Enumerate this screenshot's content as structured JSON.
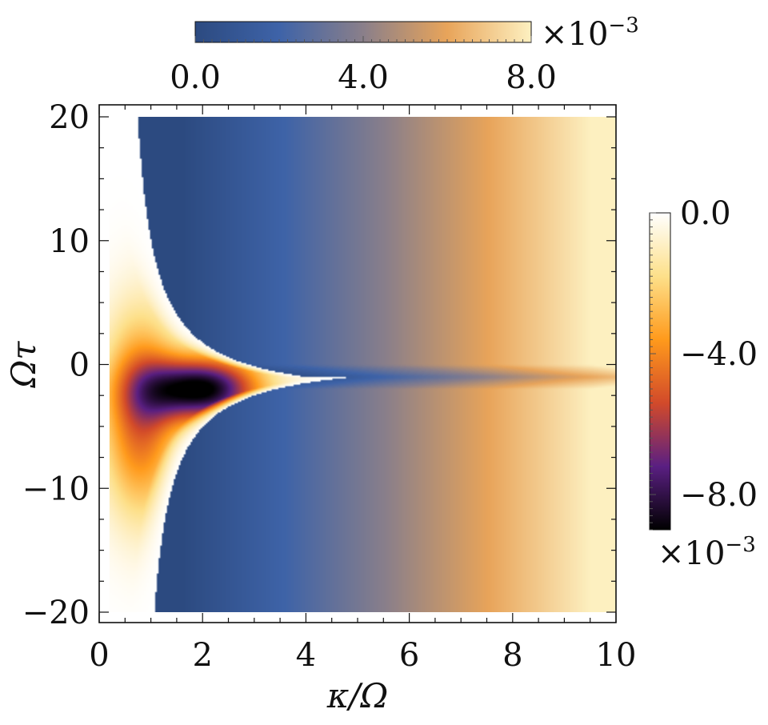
{
  "chart_data": {
    "type": "heatmap",
    "xlabel": "κ/Ω",
    "ylabel": "Ωτ",
    "xlim": [
      0,
      10
    ],
    "ylim": [
      -20,
      20
    ],
    "data_extent": {
      "x": [
        0.2,
        10
      ],
      "y": [
        -20,
        20
      ]
    },
    "x_ticks": [
      0,
      2,
      4,
      6,
      8,
      10
    ],
    "x_tick_labels": [
      "0",
      "2",
      "4",
      "6",
      "8",
      "10"
    ],
    "y_ticks": [
      20,
      10,
      0,
      -10,
      -20
    ],
    "y_tick_labels": [
      "20",
      "10",
      "0",
      "−10",
      "−20"
    ],
    "positive_colorbar": {
      "placement": "top",
      "range": [
        0,
        0.008
      ],
      "ticks": [
        0,
        0.004,
        0.008
      ],
      "tick_labels": [
        "0.0",
        "4.0",
        "8.0"
      ],
      "multiplier": "×10",
      "exponent": "−3",
      "colors": [
        "#2c4a80",
        "#3e63a8",
        "#8a7f8a",
        "#e8a45a",
        "#fdf0c0"
      ]
    },
    "negative_colorbar": {
      "placement": "right",
      "range": [
        -0.009,
        0
      ],
      "ticks": [
        0,
        -0.004,
        -0.008
      ],
      "tick_labels": [
        "0.0",
        "−4.0",
        "−8.0"
      ],
      "multiplier": "×10",
      "exponent": "−3",
      "colors": [
        "#000000",
        "#5a1f82",
        "#d24a2a",
        "#ff9a1c",
        "#fde08a",
        "#ffffff"
      ]
    },
    "features": {
      "negative_minimum": {
        "x": 2.0,
        "y": -2,
        "value": -0.009
      },
      "negative_lobe_tip_x": 4.8,
      "positive_trend": "increases with κ/Ω from about 0 near κ/Ω≈1.5 to about 0.008 at κ/Ω=10",
      "ridge_y": -1
    },
    "grid": false,
    "legend": "none"
  }
}
